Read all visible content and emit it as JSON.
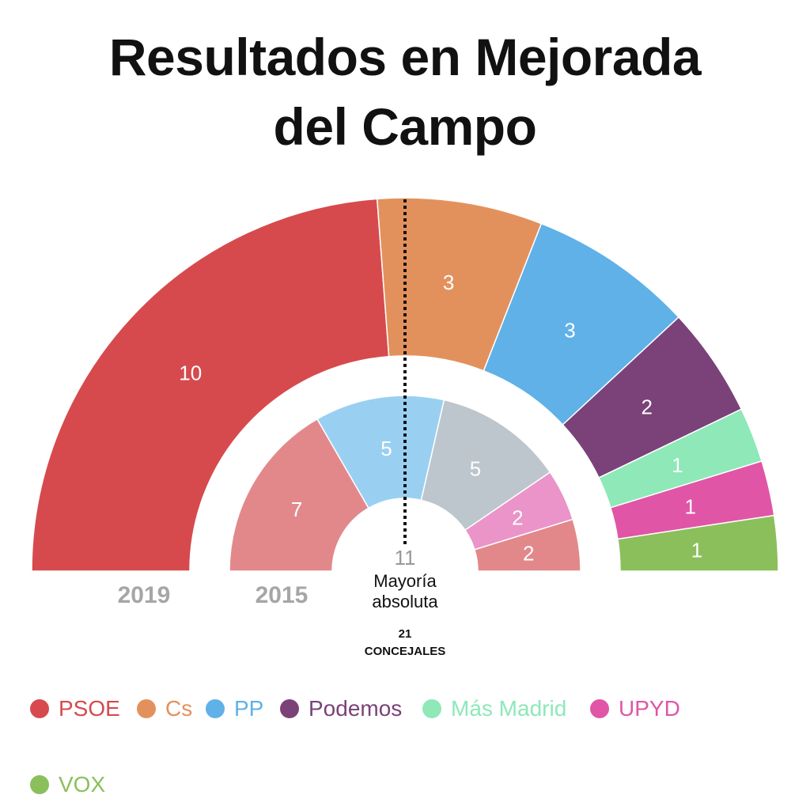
{
  "title_line1": "Resultados en Mejorada",
  "title_line2": "del Campo",
  "chart_data": {
    "type": "parliament_donut",
    "total_seats_label": "21",
    "total_label": "CONCEJALES",
    "majority_value": "11",
    "majority_label_line1": "Mayoría",
    "majority_label_line2": "absoluta",
    "total_seats": 21,
    "rings": [
      {
        "year": "2019",
        "seats": [
          {
            "party": "PSOE",
            "value": 10,
            "color": "#d64a4d"
          },
          {
            "party": "Cs",
            "value": 3,
            "color": "#e3915c"
          },
          {
            "party": "PP",
            "value": 3,
            "color": "#5fb1e8"
          },
          {
            "party": "Podemos",
            "value": 2,
            "color": "#7a4279"
          },
          {
            "party": "Más Madrid",
            "value": 1,
            "color": "#8ee8b8"
          },
          {
            "party": "UPYD",
            "value": 1,
            "color": "#e055a6"
          },
          {
            "party": "VOX",
            "value": 1,
            "color": "#8bbf5c"
          }
        ]
      },
      {
        "year": "2015",
        "seats": [
          {
            "party": "",
            "value": 7,
            "color": "#e2888b"
          },
          {
            "party": "",
            "value": 5,
            "color": "#99d0f2"
          },
          {
            "party": "",
            "value": 5,
            "color": "#bcc6cc"
          },
          {
            "party": "",
            "value": 2,
            "color": "#ea94c9"
          },
          {
            "party": "",
            "value": 2,
            "color": "#e2888b"
          }
        ]
      }
    ]
  },
  "legend": [
    {
      "label": "PSOE",
      "color": "#d64a4d"
    },
    {
      "label": "Cs",
      "color": "#e3915c"
    },
    {
      "label": "PP",
      "color": "#5fb1e8"
    },
    {
      "label": "Podemos",
      "color": "#7a4279"
    },
    {
      "label": "Más Madrid",
      "color": "#8ee8b8"
    },
    {
      "label": "UPYD",
      "color": "#e055a6"
    },
    {
      "label": "VOX",
      "color": "#8bbf5c"
    }
  ]
}
